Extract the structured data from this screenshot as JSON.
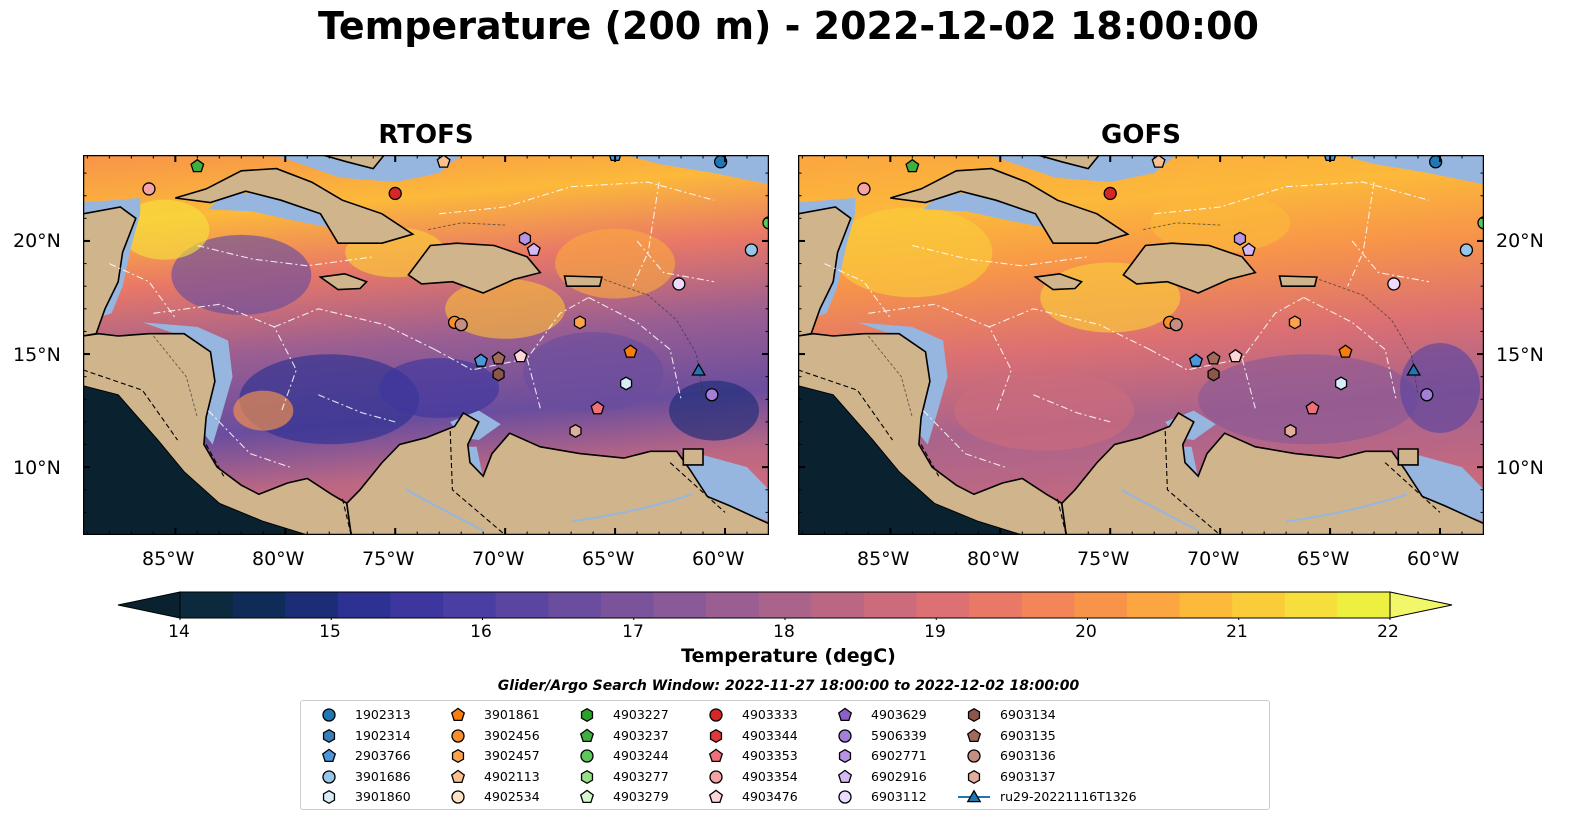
{
  "title": "Temperature (200 m) - 2022-12-02 18:00:00",
  "panels": [
    {
      "title": "RTOFS",
      "variant": "rtofs"
    },
    {
      "title": "GOFS",
      "variant": "gofs"
    }
  ],
  "lat_labels": [
    "20°N",
    "15°N",
    "10°N"
  ],
  "lon_labels": [
    "85°W",
    "80°W",
    "75°W",
    "70°W",
    "65°W",
    "60°W"
  ],
  "colorbar": {
    "label": "Temperature (degC)",
    "min": 14,
    "max": 22,
    "ticks": [
      "14",
      "15",
      "16",
      "17",
      "18",
      "19",
      "20",
      "21",
      "22"
    ],
    "colors": [
      "#0c2a3d",
      "#0f2b58",
      "#1c2d78",
      "#2d3192",
      "#3d369e",
      "#4b3ea2",
      "#5a45a1",
      "#6a4d9e",
      "#7a539b",
      "#8a5997",
      "#9a5e92",
      "#aa638b",
      "#bb6784",
      "#cc6b7c",
      "#dc7072",
      "#e97866",
      "#f38558",
      "#f7944a",
      "#fba640",
      "#fcb93a",
      "#fbcc3a",
      "#f6de3c",
      "#eef040"
    ],
    "under_color": "#0a2230",
    "over_color": "#f2f76a"
  },
  "legend": {
    "title": "Glider/Argo Search Window: 2022-11-27 18:00:00 to 2022-12-02 18:00:00",
    "items": [
      {
        "label": "1902313",
        "marker": "circle",
        "color": "#1f77b4"
      },
      {
        "label": "1902314",
        "marker": "hexagon",
        "color": "#3b7fb8"
      },
      {
        "label": "2903766",
        "marker": "pentagon",
        "color": "#4a97dc"
      },
      {
        "label": "3901686",
        "marker": "circle",
        "color": "#98c6e8"
      },
      {
        "label": "3901860",
        "marker": "hexagon",
        "color": "#d8ecf8"
      },
      {
        "label": "3901861",
        "marker": "pentagon",
        "color": "#f97d0e"
      },
      {
        "label": "3902456",
        "marker": "circle",
        "color": "#f98e2c"
      },
      {
        "label": "3902457",
        "marker": "hexagon",
        "color": "#fca34c"
      },
      {
        "label": "4902113",
        "marker": "pentagon",
        "color": "#fcc08c"
      },
      {
        "label": "4902534",
        "marker": "circle",
        "color": "#fde2c6"
      },
      {
        "label": "4903227",
        "marker": "hexagon",
        "color": "#2ca02c"
      },
      {
        "label": "4903237",
        "marker": "pentagon",
        "color": "#3fb03f"
      },
      {
        "label": "4903244",
        "marker": "circle",
        "color": "#5cc85c"
      },
      {
        "label": "4903277",
        "marker": "hexagon",
        "color": "#98df8a"
      },
      {
        "label": "4903279",
        "marker": "pentagon",
        "color": "#d8f8d0"
      },
      {
        "label": "4903333",
        "marker": "circle",
        "color": "#d62728"
      },
      {
        "label": "4903344",
        "marker": "hexagon",
        "color": "#e0383a"
      },
      {
        "label": "4903353",
        "marker": "pentagon",
        "color": "#f0707a"
      },
      {
        "label": "4903354",
        "marker": "circle",
        "color": "#f7a3a6"
      },
      {
        "label": "4903476",
        "marker": "pentagon",
        "color": "#fcd6d8"
      },
      {
        "label": "4903629",
        "marker": "pentagon",
        "color": "#8e5fc6"
      },
      {
        "label": "5906339",
        "marker": "circle",
        "color": "#a47fd8"
      },
      {
        "label": "6902771",
        "marker": "hexagon",
        "color": "#b894e6"
      },
      {
        "label": "6902916",
        "marker": "pentagon",
        "color": "#d7b8f5"
      },
      {
        "label": "6903112",
        "marker": "circle",
        "color": "#eedbfc"
      },
      {
        "label": "6903134",
        "marker": "hexagon",
        "color": "#8c564b"
      },
      {
        "label": "6903135",
        "marker": "pentagon",
        "color": "#a26a5c"
      },
      {
        "label": "6903136",
        "marker": "circle",
        "color": "#c48e80"
      },
      {
        "label": "6903137",
        "marker": "hexagon",
        "color": "#e2ae9c"
      },
      {
        "label": "ru29-20221116T1326",
        "marker": "triangle-line",
        "color": "#1f77b4"
      }
    ]
  },
  "floats": [
    {
      "id": "4903237",
      "lon": -84.0,
      "lat": 23.3
    },
    {
      "id": "4903354",
      "lon": -86.2,
      "lat": 22.3
    },
    {
      "id": "4902113",
      "lon": -72.8,
      "lat": 23.5
    },
    {
      "id": "4903333",
      "lon": -75.0,
      "lat": 22.1
    },
    {
      "id": "2903766",
      "lon": -65.0,
      "lat": 23.8
    },
    {
      "id": "1902313",
      "lon": -60.2,
      "lat": 23.5
    },
    {
      "id": "4903244",
      "lon": -58.0,
      "lat": 20.8
    },
    {
      "id": "3901686",
      "lon": -58.8,
      "lat": 19.6
    },
    {
      "id": "6902771",
      "lon": -69.1,
      "lat": 20.1
    },
    {
      "id": "6902916",
      "lon": -68.7,
      "lat": 19.6
    },
    {
      "id": "6903112",
      "lon": -62.1,
      "lat": 18.1
    },
    {
      "id": "3902456",
      "lon": -72.3,
      "lat": 16.4
    },
    {
      "id": "6903136",
      "lon": -72.0,
      "lat": 16.3
    },
    {
      "id": "3902457",
      "lon": -66.6,
      "lat": 16.4
    },
    {
      "id": "3901861",
      "lon": -64.3,
      "lat": 15.1
    },
    {
      "id": "4903476",
      "lon": -69.3,
      "lat": 14.9
    },
    {
      "id": "6903135",
      "lon": -70.3,
      "lat": 14.8
    },
    {
      "id": "6903134",
      "lon": -70.3,
      "lat": 14.1
    },
    {
      "id": "2903766",
      "lon": -71.1,
      "lat": 14.7
    },
    {
      "id": "3901860",
      "lon": -64.5,
      "lat": 13.7
    },
    {
      "id": "4903353",
      "lon": -65.8,
      "lat": 12.6
    },
    {
      "id": "6903137",
      "lon": -66.8,
      "lat": 11.6
    },
    {
      "id": "5906339",
      "lon": -60.6,
      "lat": 13.2
    },
    {
      "id": "ru29-20221116T1326",
      "lon": -61.2,
      "lat": 14.3
    }
  ]
}
